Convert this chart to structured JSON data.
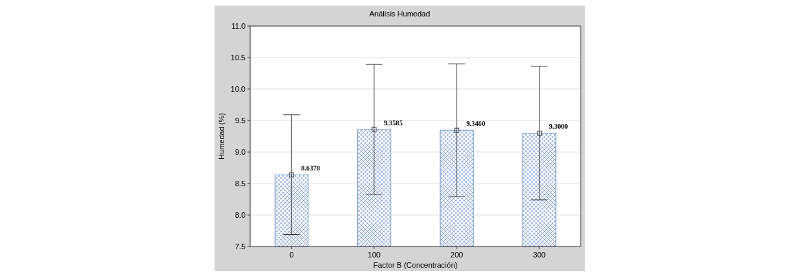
{
  "chart_data": {
    "type": "bar",
    "title": "Análisis Humedad",
    "xlabel": "Factor B (Concentración)",
    "ylabel": "Humedad (%)",
    "categories": [
      "0",
      "100",
      "200",
      "300"
    ],
    "series": [
      {
        "color": "#7a9bd0",
        "values": [
          8.6378,
          9.3585,
          9.346,
          9.3
        ],
        "errors": [
          [
            7.69,
            9.59
          ],
          [
            8.33,
            10.39
          ],
          [
            8.29,
            10.4
          ],
          [
            8.24,
            10.36
          ]
        ],
        "value_labels": [
          "8.6378",
          "9.3585",
          "9.3460",
          "9.3000"
        ]
      },
      {
        "type": "scatter",
        "color": "#333333",
        "x": [
          "0",
          "100",
          "200",
          "300"
        ],
        "values": [
          8.6378,
          9.3585,
          9.346,
          9.3
        ]
      }
    ],
    "ylim": [
      7.5,
      11.0
    ],
    "yticks": [
      {
        "value": 7.5,
        "label": "7.5"
      },
      {
        "value": 8,
        "label": "8.0"
      },
      {
        "value": 8.5,
        "label": "8.5"
      },
      {
        "value": 9,
        "label": "9.0"
      },
      {
        "value": 9.5,
        "label": "9.5"
      },
      {
        "value": 10,
        "label": "10.0"
      },
      {
        "value": 10.5,
        "label": "10.5"
      },
      {
        "value": 11,
        "label": "11.0"
      }
    ],
    "grid": "y",
    "marker": "square"
  }
}
